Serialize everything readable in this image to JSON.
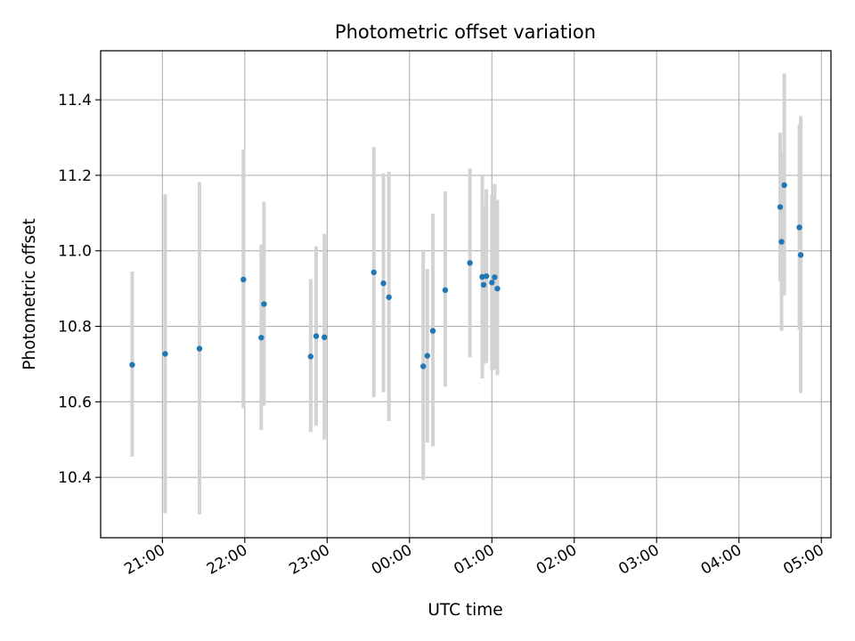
{
  "chart_data": {
    "type": "scatter",
    "title": "Photometric offset variation",
    "xlabel": "UTC time",
    "ylabel": "Photometric offset",
    "xlim": [
      "20:15",
      "05:07"
    ],
    "ylim": [
      10.24,
      11.53
    ],
    "x_ticks": [
      "21:00",
      "22:00",
      "23:00",
      "00:00",
      "01:00",
      "02:00",
      "03:00",
      "04:00",
      "05:00"
    ],
    "y_ticks": [
      "10.4",
      "10.6",
      "10.8",
      "11.0",
      "11.2",
      "11.4"
    ],
    "grid": true,
    "point_color": "#1f77b4",
    "errorbar_color": "#d3d3d3",
    "points": [
      {
        "t": "20:38",
        "y": 10.698,
        "lo": 10.455,
        "hi": 10.945
      },
      {
        "t": "21:02",
        "y": 10.727,
        "lo": 10.305,
        "hi": 11.15
      },
      {
        "t": "21:27",
        "y": 10.741,
        "lo": 10.302,
        "hi": 11.182
      },
      {
        "t": "21:59",
        "y": 10.924,
        "lo": 10.583,
        "hi": 11.268
      },
      {
        "t": "22:12",
        "y": 10.77,
        "lo": 10.525,
        "hi": 11.017
      },
      {
        "t": "22:14",
        "y": 10.859,
        "lo": 10.59,
        "hi": 11.13
      },
      {
        "t": "22:48",
        "y": 10.72,
        "lo": 10.52,
        "hi": 10.925
      },
      {
        "t": "22:52",
        "y": 10.774,
        "lo": 10.537,
        "hi": 11.012
      },
      {
        "t": "22:58",
        "y": 10.771,
        "lo": 10.5,
        "hi": 11.045
      },
      {
        "t": "23:34",
        "y": 10.943,
        "lo": 10.612,
        "hi": 11.275
      },
      {
        "t": "23:41",
        "y": 10.914,
        "lo": 10.625,
        "hi": 11.205
      },
      {
        "t": "23:45",
        "y": 10.877,
        "lo": 10.549,
        "hi": 11.21
      },
      {
        "t": "00:10",
        "y": 10.694,
        "lo": 10.393,
        "hi": 11.003
      },
      {
        "t": "00:13",
        "y": 10.722,
        "lo": 10.492,
        "hi": 10.952
      },
      {
        "t": "00:17",
        "y": 10.788,
        "lo": 10.482,
        "hi": 11.098
      },
      {
        "t": "00:26",
        "y": 10.896,
        "lo": 10.64,
        "hi": 11.157
      },
      {
        "t": "00:44",
        "y": 10.968,
        "lo": 10.718,
        "hi": 11.218
      },
      {
        "t": "00:53",
        "y": 10.931,
        "lo": 10.662,
        "hi": 11.2
      },
      {
        "t": "00:54",
        "y": 10.91,
        "lo": 10.7,
        "hi": 11.12
      },
      {
        "t": "00:56",
        "y": 10.933,
        "lo": 10.703,
        "hi": 11.163
      },
      {
        "t": "01:00",
        "y": 10.916,
        "lo": 10.683,
        "hi": 11.148
      },
      {
        "t": "01:02",
        "y": 10.93,
        "lo": 10.685,
        "hi": 11.177
      },
      {
        "t": "01:04",
        "y": 10.9,
        "lo": 10.67,
        "hi": 11.135
      },
      {
        "t": "04:30",
        "y": 11.116,
        "lo": 10.92,
        "hi": 11.313
      },
      {
        "t": "04:31",
        "y": 11.024,
        "lo": 10.788,
        "hi": 11.26
      },
      {
        "t": "04:33",
        "y": 11.174,
        "lo": 10.882,
        "hi": 11.47
      },
      {
        "t": "04:44",
        "y": 11.062,
        "lo": 10.79,
        "hi": 11.335
      },
      {
        "t": "04:45",
        "y": 10.989,
        "lo": 10.623,
        "hi": 11.357
      }
    ]
  }
}
